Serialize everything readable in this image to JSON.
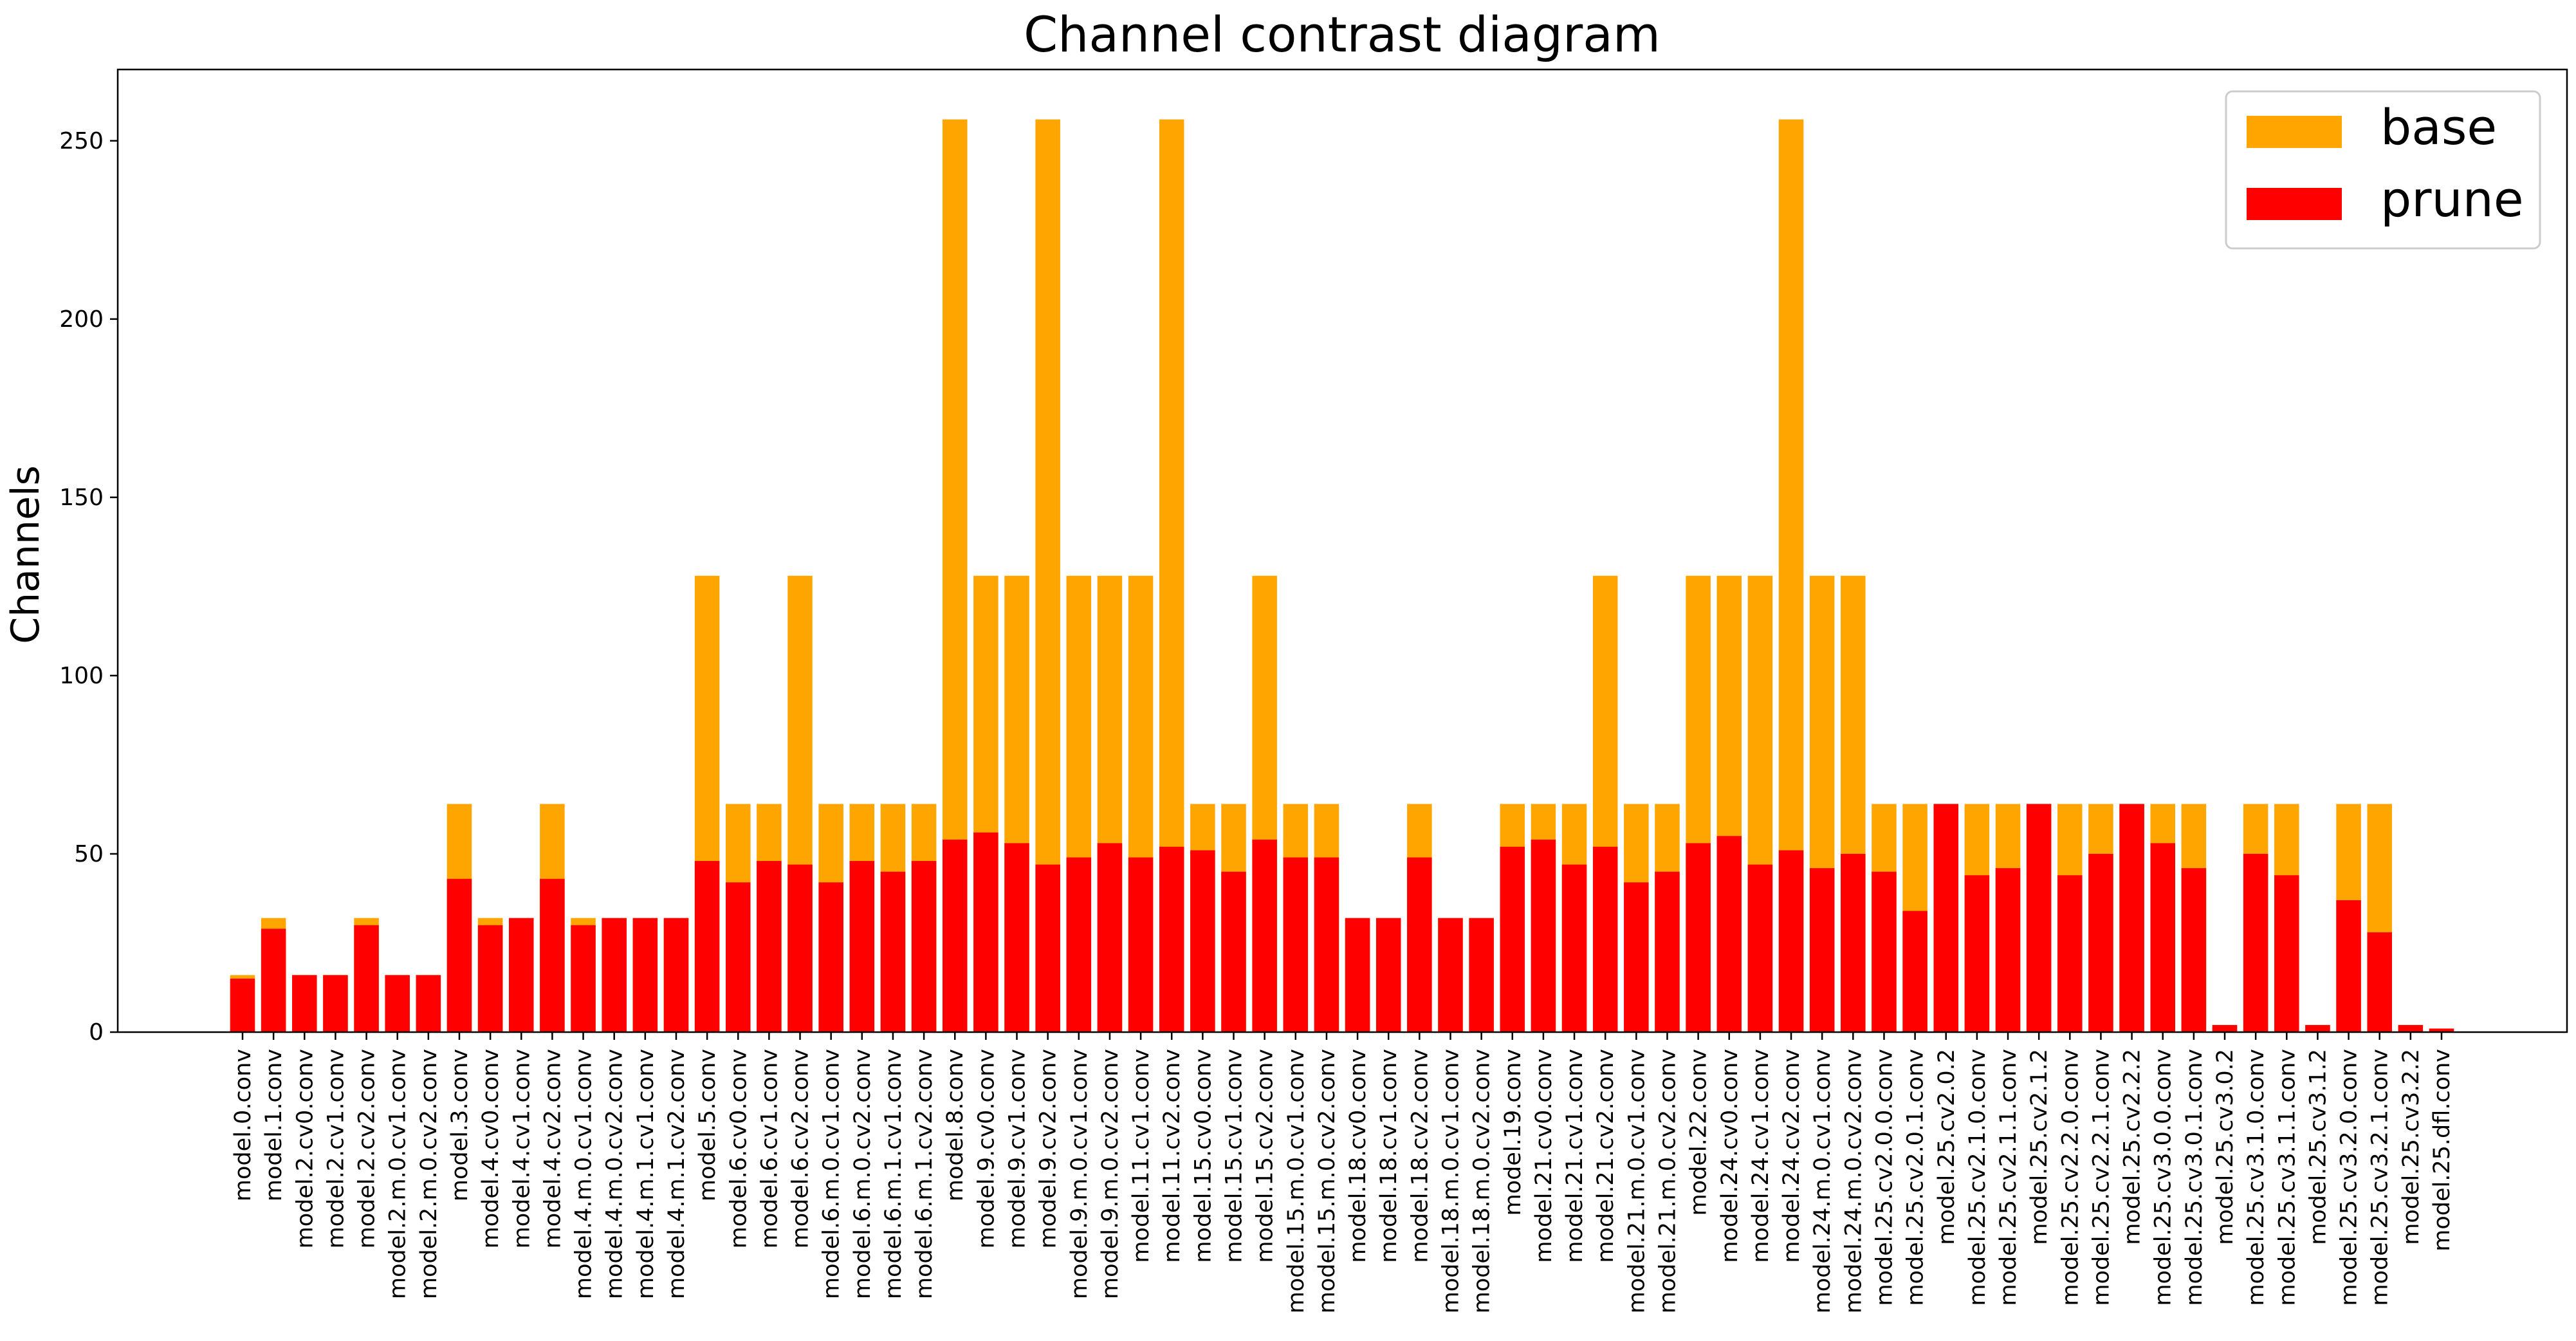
{
  "chart_data": {
    "type": "bar",
    "title": "Channel contrast diagram",
    "xlabel": "",
    "ylabel": "Channels",
    "ylim": [
      0,
      270
    ],
    "yticks": [
      0,
      50,
      100,
      150,
      200,
      250
    ],
    "grid": false,
    "legend_position": "top-right",
    "colors": {
      "base": "#FFA500",
      "prune": "#FF0000"
    },
    "categories": [
      "model.0.conv",
      "model.1.conv",
      "model.2.cv0.conv",
      "model.2.cv1.conv",
      "model.2.cv2.conv",
      "model.2.m.0.cv1.conv",
      "model.2.m.0.cv2.conv",
      "model.3.conv",
      "model.4.cv0.conv",
      "model.4.cv1.conv",
      "model.4.cv2.conv",
      "model.4.m.0.cv1.conv",
      "model.4.m.0.cv2.conv",
      "model.4.m.1.cv1.conv",
      "model.4.m.1.cv2.conv",
      "model.5.conv",
      "model.6.cv0.conv",
      "model.6.cv1.conv",
      "model.6.cv2.conv",
      "model.6.m.0.cv1.conv",
      "model.6.m.0.cv2.conv",
      "model.6.m.1.cv1.conv",
      "model.6.m.1.cv2.conv",
      "model.8.conv",
      "model.9.cv0.conv",
      "model.9.cv1.conv",
      "model.9.cv2.conv",
      "model.9.m.0.cv1.conv",
      "model.9.m.0.cv2.conv",
      "model.11.cv1.conv",
      "model.11.cv2.conv",
      "model.15.cv0.conv",
      "model.15.cv1.conv",
      "model.15.cv2.conv",
      "model.15.m.0.cv1.conv",
      "model.15.m.0.cv2.conv",
      "model.18.cv0.conv",
      "model.18.cv1.conv",
      "model.18.cv2.conv",
      "model.18.m.0.cv1.conv",
      "model.18.m.0.cv2.conv",
      "model.19.conv",
      "model.21.cv0.conv",
      "model.21.cv1.conv",
      "model.21.cv2.conv",
      "model.21.m.0.cv1.conv",
      "model.21.m.0.cv2.conv",
      "model.22.conv",
      "model.24.cv0.conv",
      "model.24.cv1.conv",
      "model.24.cv2.conv",
      "model.24.m.0.cv1.conv",
      "model.24.m.0.cv2.conv",
      "model.25.cv2.0.0.conv",
      "model.25.cv2.0.1.conv",
      "model.25.cv2.0.2",
      "model.25.cv2.1.0.conv",
      "model.25.cv2.1.1.conv",
      "model.25.cv2.1.2",
      "model.25.cv2.2.0.conv",
      "model.25.cv2.2.1.conv",
      "model.25.cv2.2.2",
      "model.25.cv3.0.0.conv",
      "model.25.cv3.0.1.conv",
      "model.25.cv3.0.2",
      "model.25.cv3.1.0.conv",
      "model.25.cv3.1.1.conv",
      "model.25.cv3.1.2",
      "model.25.cv3.2.0.conv",
      "model.25.cv3.2.1.conv",
      "model.25.cv3.2.2",
      "model.25.dfl.conv"
    ],
    "series": [
      {
        "name": "base",
        "values": [
          16,
          32,
          16,
          16,
          32,
          16,
          16,
          64,
          32,
          32,
          64,
          32,
          32,
          32,
          32,
          128,
          64,
          64,
          128,
          64,
          64,
          64,
          64,
          256,
          128,
          128,
          256,
          128,
          128,
          128,
          256,
          64,
          64,
          128,
          64,
          64,
          32,
          32,
          64,
          32,
          32,
          64,
          64,
          64,
          128,
          64,
          64,
          128,
          128,
          128,
          256,
          128,
          128,
          64,
          64,
          64,
          64,
          64,
          64,
          64,
          64,
          64,
          64,
          64,
          2,
          64,
          64,
          2,
          64,
          64,
          2,
          1
        ]
      },
      {
        "name": "prune",
        "values": [
          15,
          29,
          16,
          16,
          30,
          16,
          16,
          43,
          30,
          32,
          43,
          30,
          32,
          32,
          32,
          48,
          42,
          48,
          47,
          42,
          48,
          45,
          48,
          54,
          56,
          53,
          47,
          49,
          53,
          49,
          52,
          51,
          45,
          54,
          49,
          49,
          32,
          32,
          49,
          32,
          32,
          52,
          54,
          47,
          52,
          42,
          45,
          53,
          55,
          47,
          51,
          46,
          50,
          45,
          34,
          64,
          44,
          46,
          64,
          44,
          50,
          64,
          53,
          46,
          2,
          50,
          44,
          2,
          37,
          28,
          2,
          1
        ]
      }
    ]
  }
}
